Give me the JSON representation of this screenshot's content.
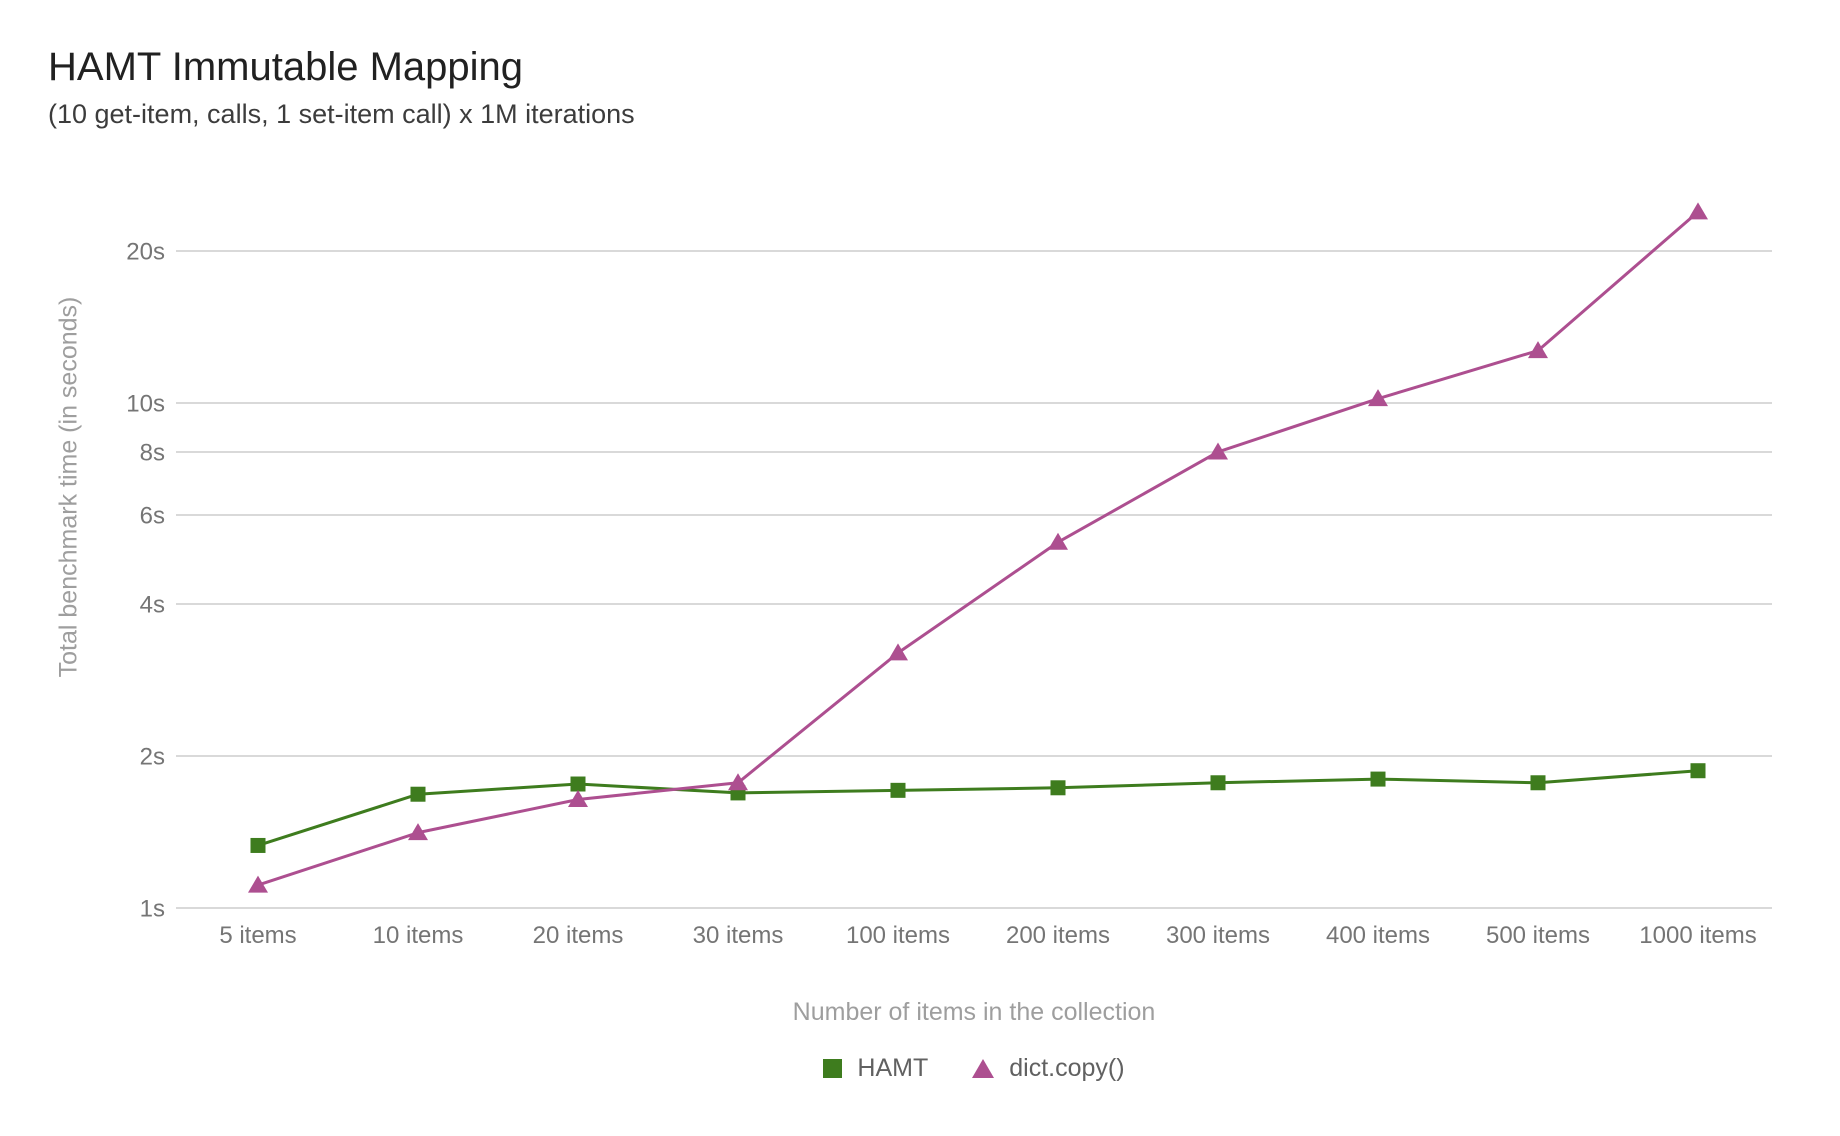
{
  "header": {
    "title": "HAMT Immutable Mapping",
    "subtitle": "(10 get-item, calls, 1 set-item call) x 1M iterations"
  },
  "chart_data": {
    "type": "line",
    "title": "HAMT Immutable Mapping",
    "subtitle": "(10 get-item, calls, 1 set-item call) x 1M iterations",
    "xlabel": "Number of items in the collection",
    "ylabel": "Total benchmark time (in seconds)",
    "x_categories": [
      "5 items",
      "10 items",
      "20 items",
      "30 items",
      "100 items",
      "200 items",
      "300 items",
      "400 items",
      "500 items",
      "1000 items"
    ],
    "y_scale": "log",
    "y_ticks": [
      {
        "value": 1,
        "label": "1s"
      },
      {
        "value": 2,
        "label": "2s"
      },
      {
        "value": 4,
        "label": "4s"
      },
      {
        "value": 6,
        "label": "6s"
      },
      {
        "value": 8,
        "label": "8s"
      },
      {
        "value": 10,
        "label": "10s"
      },
      {
        "value": 20,
        "label": "20s"
      }
    ],
    "ylim": [
      1,
      26
    ],
    "grid": true,
    "legend_position": "bottom",
    "series": [
      {
        "name": "HAMT",
        "marker": "square",
        "color": "#3e7c1e",
        "values": [
          1.33,
          1.68,
          1.76,
          1.69,
          1.71,
          1.73,
          1.77,
          1.8,
          1.77,
          1.87
        ]
      },
      {
        "name": "dict.copy()",
        "marker": "triangle",
        "color": "#ad4f90",
        "values": [
          1.11,
          1.41,
          1.64,
          1.77,
          3.2,
          5.3,
          8.0,
          10.2,
          12.7,
          23.9
        ]
      }
    ],
    "style": {
      "grid_color": "#d9d9d9",
      "tick_label_color": "#757575",
      "axis_title_color": "#9e9e9e",
      "legend_text_color": "#616161",
      "title_color": "#212121",
      "subtitle_color": "#3c3c3c"
    }
  }
}
